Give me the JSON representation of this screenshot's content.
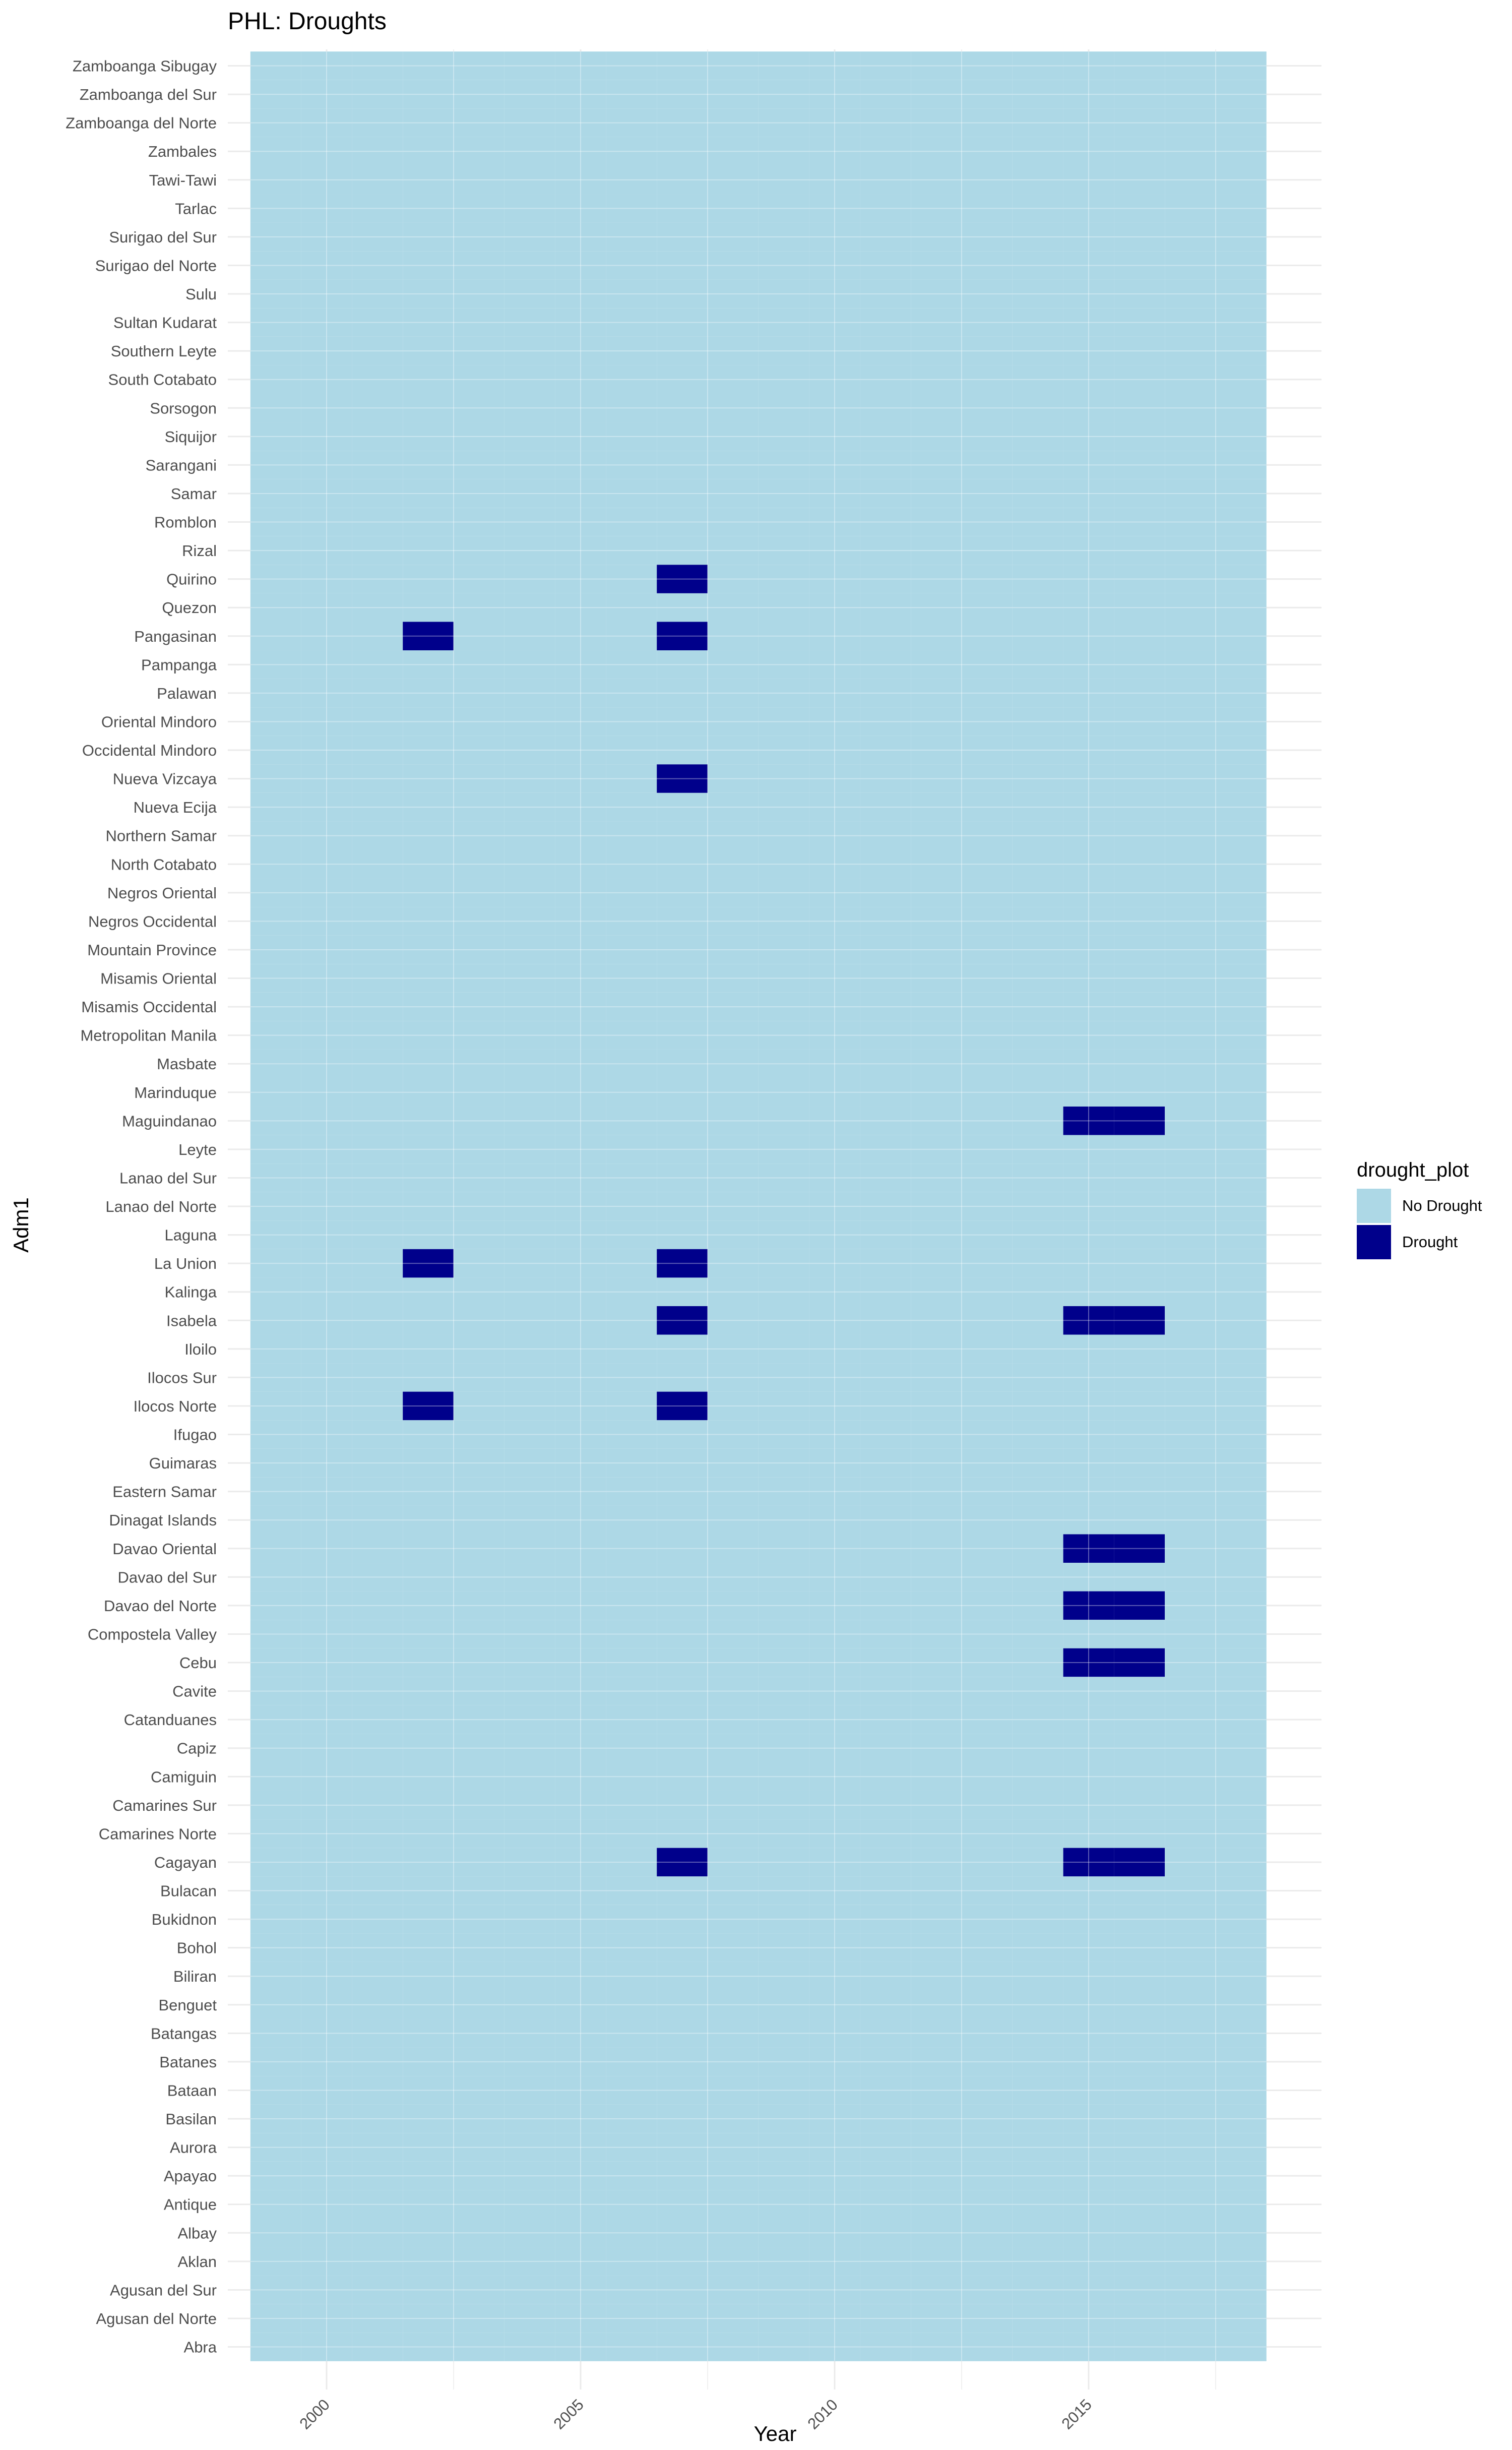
{
  "chart_data": {
    "type": "heatmap",
    "title": "PHL: Droughts",
    "xlabel": "Year",
    "ylabel": "Adm1",
    "x_range": [
      1999,
      2018
    ],
    "x_ticks": [
      2000,
      2005,
      2010,
      2015
    ],
    "grid": true,
    "legend": {
      "title": "drought_plot",
      "position": "right",
      "entries": [
        {
          "label": "No Drought",
          "color": "#add8e6"
        },
        {
          "label": "Drought",
          "color": "#00008b"
        }
      ]
    },
    "colors": {
      "no_drought": "#add8e6",
      "drought": "#00008b"
    },
    "categories": [
      "Abra",
      "Agusan del Norte",
      "Agusan del Sur",
      "Aklan",
      "Albay",
      "Antique",
      "Apayao",
      "Aurora",
      "Basilan",
      "Bataan",
      "Batanes",
      "Batangas",
      "Benguet",
      "Biliran",
      "Bohol",
      "Bukidnon",
      "Bulacan",
      "Cagayan",
      "Camarines Norte",
      "Camarines Sur",
      "Camiguin",
      "Capiz",
      "Catanduanes",
      "Cavite",
      "Cebu",
      "Compostela Valley",
      "Davao del Norte",
      "Davao del Sur",
      "Davao Oriental",
      "Dinagat Islands",
      "Eastern Samar",
      "Guimaras",
      "Ifugao",
      "Ilocos Norte",
      "Ilocos Sur",
      "Iloilo",
      "Isabela",
      "Kalinga",
      "La Union",
      "Laguna",
      "Lanao del Norte",
      "Lanao del Sur",
      "Leyte",
      "Maguindanao",
      "Marinduque",
      "Masbate",
      "Metropolitan Manila",
      "Misamis Occidental",
      "Misamis Oriental",
      "Mountain Province",
      "Negros Occidental",
      "Negros Oriental",
      "North Cotabato",
      "Northern Samar",
      "Nueva Ecija",
      "Nueva Vizcaya",
      "Occidental Mindoro",
      "Oriental Mindoro",
      "Palawan",
      "Pampanga",
      "Pangasinan",
      "Quezon",
      "Quirino",
      "Rizal",
      "Romblon",
      "Samar",
      "Sarangani",
      "Siquijor",
      "Sorsogon",
      "South Cotabato",
      "Southern Leyte",
      "Sultan Kudarat",
      "Sulu",
      "Surigao del Norte",
      "Surigao del Sur",
      "Tarlac",
      "Tawi-Tawi",
      "Zambales",
      "Zamboanga del Norte",
      "Zamboanga del Sur",
      "Zamboanga Sibugay"
    ],
    "drought_cells": [
      {
        "adm1": "Quirino",
        "year": 2007
      },
      {
        "adm1": "Pangasinan",
        "year": 2002
      },
      {
        "adm1": "Pangasinan",
        "year": 2007
      },
      {
        "adm1": "Nueva Vizcaya",
        "year": 2007
      },
      {
        "adm1": "Maguindanao",
        "year": 2015
      },
      {
        "adm1": "Maguindanao",
        "year": 2016
      },
      {
        "adm1": "La Union",
        "year": 2002
      },
      {
        "adm1": "La Union",
        "year": 2007
      },
      {
        "adm1": "Isabela",
        "year": 2007
      },
      {
        "adm1": "Isabela",
        "year": 2015
      },
      {
        "adm1": "Isabela",
        "year": 2016
      },
      {
        "adm1": "Ilocos Norte",
        "year": 2002
      },
      {
        "adm1": "Ilocos Norte",
        "year": 2007
      },
      {
        "adm1": "Davao Oriental",
        "year": 2015
      },
      {
        "adm1": "Davao Oriental",
        "year": 2016
      },
      {
        "adm1": "Davao del Norte",
        "year": 2015
      },
      {
        "adm1": "Davao del Norte",
        "year": 2016
      },
      {
        "adm1": "Cebu",
        "year": 2015
      },
      {
        "adm1": "Cebu",
        "year": 2016
      },
      {
        "adm1": "Cagayan",
        "year": 2007
      },
      {
        "adm1": "Cagayan",
        "year": 2015
      },
      {
        "adm1": "Cagayan",
        "year": 2016
      }
    ]
  }
}
